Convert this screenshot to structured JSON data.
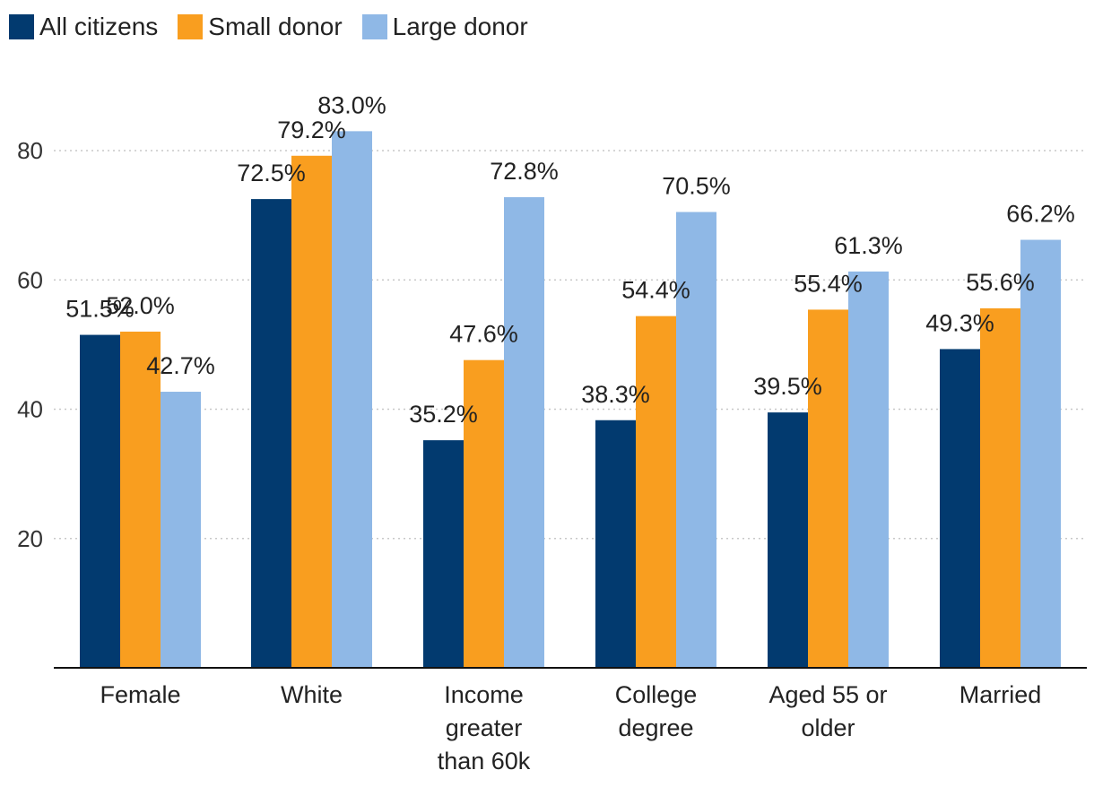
{
  "chart_data": {
    "type": "bar",
    "categories": [
      [
        "Female"
      ],
      [
        "White"
      ],
      [
        "Income",
        "greater",
        "than 60k"
      ],
      [
        "College",
        "degree"
      ],
      [
        "Aged 55 or",
        "older"
      ],
      [
        "Married"
      ]
    ],
    "series": [
      {
        "name": "All citizens",
        "color": "#023a6f",
        "values": [
          51.5,
          72.5,
          35.2,
          38.3,
          39.5,
          49.3
        ],
        "labels": [
          "51.5%",
          "72.5%",
          "35.2%",
          "38.3%",
          "39.5%",
          "49.3%"
        ]
      },
      {
        "name": "Small donor",
        "color": "#f99e1f",
        "values": [
          52.0,
          79.2,
          47.6,
          54.4,
          55.4,
          55.6
        ],
        "labels": [
          "52.0%",
          "79.2%",
          "47.6%",
          "54.4%",
          "55.4%",
          "55.6%"
        ]
      },
      {
        "name": "Large donor",
        "color": "#8fb8e6",
        "values": [
          42.7,
          83.0,
          72.8,
          70.5,
          61.3,
          66.2
        ],
        "labels": [
          "42.7%",
          "83.0%",
          "72.8%",
          "70.5%",
          "61.3%",
          "66.2%"
        ]
      }
    ],
    "yticks": [
      "20",
      "40",
      "60",
      "80"
    ],
    "ytick_values": [
      20,
      40,
      60,
      80
    ],
    "ylim": [
      0,
      90
    ],
    "grid": true,
    "legend_position": "top-left"
  }
}
